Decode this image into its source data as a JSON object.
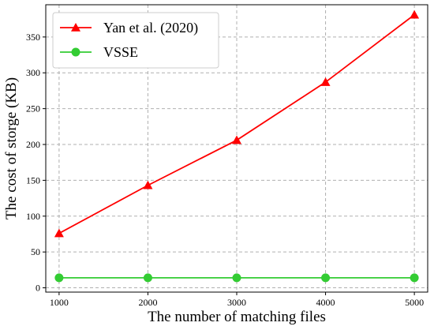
{
  "chart_data": {
    "type": "line",
    "xlabel": "The number of matching files",
    "ylabel": "The cost of storge (KB)",
    "x": [
      1000,
      2000,
      3000,
      4000,
      5000
    ],
    "x_ticks": [
      "1000",
      "2000",
      "3000",
      "4000",
      "5000"
    ],
    "y_ticks": [
      0,
      50,
      100,
      150,
      200,
      250,
      300,
      350
    ],
    "xlim": [
      850,
      5150
    ],
    "ylim": [
      -6,
      395
    ],
    "grid": true,
    "legend_position": "top-left",
    "series": [
      {
        "name": "Yan et al. (2020)",
        "values": [
          76,
          143,
          206,
          287,
          381
        ],
        "color": "#ff0000",
        "marker": "triangle"
      },
      {
        "name": "VSSE",
        "values": [
          14,
          14,
          14,
          14,
          14
        ],
        "color": "#33cc33",
        "marker": "circle"
      }
    ]
  }
}
